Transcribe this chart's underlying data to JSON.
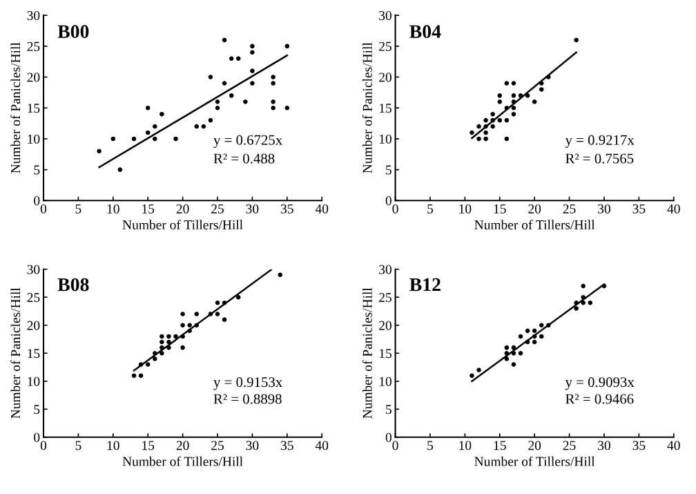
{
  "chart_data": [
    {
      "type": "scatter",
      "title": "B00",
      "xlabel": "Number of Tillers/Hill",
      "ylabel": "Number of Panicles/Hill",
      "xlim": [
        0,
        40
      ],
      "xticks": [
        0,
        5,
        10,
        15,
        20,
        25,
        30,
        35,
        40
      ],
      "ylim": [
        0,
        30
      ],
      "yticks": [
        0,
        5,
        10,
        15,
        20,
        25,
        30
      ],
      "grid": false,
      "annotations": [
        "y = 0.6725x",
        "R² = 0.488"
      ],
      "series": [
        {
          "color": "#000000",
          "marker": "circle",
          "x": [
            8,
            10,
            11,
            13,
            15,
            15,
            16,
            16,
            17,
            19,
            22,
            23,
            24,
            24,
            25,
            25,
            26,
            26,
            27,
            27,
            28,
            29,
            30,
            30,
            30,
            30,
            33,
            33,
            33,
            33,
            35,
            35
          ],
          "values": [
            8,
            10,
            5,
            10,
            15,
            11,
            12,
            10,
            14,
            10,
            12,
            12,
            13,
            20,
            16,
            15,
            26,
            19,
            23,
            17,
            23,
            16,
            25,
            24,
            21,
            19,
            20,
            19,
            16,
            15,
            25,
            15
          ]
        },
        {
          "type": "line",
          "color": "#000000",
          "marker": "none",
          "line_style": "solid",
          "x": [
            8,
            35
          ],
          "values": [
            5.4,
            23.5
          ]
        }
      ]
    },
    {
      "type": "scatter",
      "title": "B04",
      "xlabel": "Number of Tillers/Hill",
      "ylabel": "Number of Panicles/Hill",
      "xlim": [
        0,
        40
      ],
      "xticks": [
        0,
        5,
        10,
        15,
        20,
        25,
        30,
        35,
        40
      ],
      "ylim": [
        0,
        30
      ],
      "yticks": [
        0,
        5,
        10,
        15,
        20,
        25,
        30
      ],
      "grid": false,
      "annotations": [
        "y = 0.9217x",
        "R² = 0.7565"
      ],
      "series": [
        {
          "color": "#000000",
          "marker": "circle",
          "x": [
            11,
            12,
            12,
            13,
            13,
            13,
            13,
            14,
            14,
            14,
            15,
            15,
            15,
            16,
            16,
            16,
            16,
            17,
            17,
            17,
            17,
            17,
            18,
            19,
            20,
            21,
            21,
            22,
            26
          ],
          "values": [
            11,
            12,
            10,
            13,
            12,
            11,
            10,
            14,
            13,
            12,
            17,
            16,
            13,
            19,
            15,
            13,
            10,
            19,
            17,
            16,
            15,
            14,
            17,
            17,
            16,
            19,
            18,
            20,
            26
          ]
        },
        {
          "type": "line",
          "color": "#000000",
          "marker": "none",
          "line_style": "solid",
          "x": [
            11,
            26
          ],
          "values": [
            10.1,
            24.0
          ]
        }
      ]
    },
    {
      "type": "scatter",
      "title": "B08",
      "xlabel": "Number of Tillers/Hill",
      "ylabel": "Number of Panicles/Hill",
      "xlim": [
        0,
        40
      ],
      "xticks": [
        0,
        5,
        10,
        15,
        20,
        25,
        30,
        35,
        40
      ],
      "ylim": [
        0,
        30
      ],
      "yticks": [
        0,
        5,
        10,
        15,
        20,
        25,
        30
      ],
      "grid": false,
      "annotations": [
        "y = 0.9153x",
        "R² = 0.8898"
      ],
      "series": [
        {
          "color": "#000000",
          "marker": "circle",
          "x": [
            13,
            14,
            14,
            15,
            16,
            16,
            17,
            17,
            17,
            17,
            18,
            18,
            18,
            19,
            20,
            20,
            20,
            20,
            21,
            21,
            22,
            22,
            24,
            25,
            25,
            26,
            26,
            28,
            34
          ],
          "values": [
            11,
            11,
            13,
            13,
            15,
            14,
            18,
            17,
            16,
            15,
            18,
            17,
            16,
            18,
            22,
            20,
            18,
            16,
            20,
            19,
            22,
            20,
            22,
            24,
            22,
            24,
            21,
            25,
            29
          ]
        },
        {
          "type": "line",
          "color": "#000000",
          "marker": "none",
          "line_style": "solid",
          "x": [
            13,
            32.7
          ],
          "values": [
            11.9,
            29.9
          ]
        }
      ]
    },
    {
      "type": "scatter",
      "title": "B12",
      "xlabel": "Number of Tillers/Hill",
      "ylabel": "Number of Panicles/Hill",
      "xlim": [
        0,
        40
      ],
      "xticks": [
        0,
        5,
        10,
        15,
        20,
        25,
        30,
        35,
        40
      ],
      "ylim": [
        0,
        30
      ],
      "yticks": [
        0,
        5,
        10,
        15,
        20,
        25,
        30
      ],
      "grid": false,
      "annotations": [
        "y = 0.9093x",
        "R² = 0.9466"
      ],
      "series": [
        {
          "color": "#000000",
          "marker": "circle",
          "x": [
            11,
            12,
            16,
            16,
            16,
            17,
            17,
            17,
            18,
            18,
            19,
            19,
            20,
            20,
            20,
            21,
            21,
            22,
            26,
            26,
            27,
            27,
            27,
            28,
            30
          ],
          "values": [
            11,
            12,
            16,
            15,
            14,
            16,
            15,
            13,
            18,
            15,
            19,
            17,
            19,
            18,
            17,
            20,
            18,
            20,
            24,
            23,
            27,
            25,
            24,
            24,
            27
          ]
        },
        {
          "type": "line",
          "color": "#000000",
          "marker": "none",
          "line_style": "solid",
          "x": [
            11,
            30
          ],
          "values": [
            10.0,
            27.3
          ]
        }
      ]
    }
  ]
}
